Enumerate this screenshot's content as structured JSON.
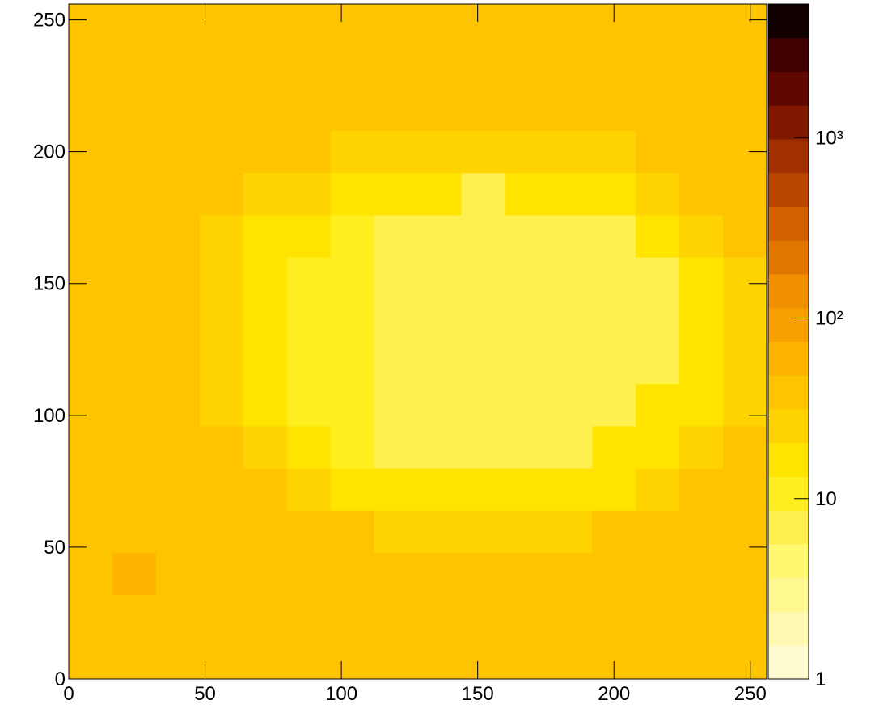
{
  "chart_data": {
    "type": "heatmap",
    "x_bins": [
      0,
      16,
      32,
      48,
      64,
      80,
      96,
      112,
      128,
      144,
      160,
      176,
      192,
      208,
      224,
      240,
      256
    ],
    "y_bins": [
      0,
      16,
      32,
      48,
      64,
      80,
      96,
      112,
      128,
      144,
      160,
      176,
      192,
      208,
      224,
      240,
      256
    ],
    "z": [
      [
        40,
        40,
        40,
        40,
        40,
        40,
        40,
        40,
        40,
        40,
        40,
        40,
        40,
        40,
        40,
        40
      ],
      [
        40,
        40,
        40,
        40,
        40,
        40,
        40,
        40,
        40,
        40,
        40,
        40,
        40,
        40,
        40,
        40
      ],
      [
        40,
        60,
        40,
        40,
        40,
        40,
        40,
        40,
        40,
        40,
        40,
        40,
        40,
        40,
        40,
        40
      ],
      [
        40,
        40,
        40,
        40,
        40,
        40,
        40,
        25,
        25,
        25,
        25,
        25,
        40,
        40,
        40,
        40
      ],
      [
        40,
        40,
        40,
        40,
        40,
        25,
        15,
        15,
        15,
        15,
        15,
        15,
        15,
        25,
        40,
        40
      ],
      [
        40,
        40,
        40,
        40,
        25,
        15,
        10,
        6,
        6,
        6,
        6,
        6,
        15,
        15,
        25,
        40
      ],
      [
        40,
        40,
        40,
        25,
        15,
        10,
        10,
        6,
        6,
        6,
        6,
        6,
        6,
        15,
        15,
        25
      ],
      [
        40,
        40,
        40,
        25,
        15,
        10,
        10,
        6,
        6,
        6,
        6,
        6,
        6,
        6,
        15,
        25
      ],
      [
        40,
        40,
        40,
        25,
        15,
        10,
        10,
        6,
        6,
        6,
        6,
        6,
        6,
        6,
        15,
        25
      ],
      [
        40,
        40,
        40,
        25,
        15,
        10,
        10,
        6,
        6,
        6,
        6,
        6,
        6,
        6,
        15,
        25
      ],
      [
        40,
        40,
        40,
        25,
        15,
        15,
        10,
        6,
        6,
        6,
        6,
        6,
        6,
        15,
        25,
        40
      ],
      [
        40,
        40,
        40,
        40,
        25,
        25,
        15,
        15,
        15,
        6,
        15,
        15,
        15,
        25,
        40,
        40
      ],
      [
        40,
        40,
        40,
        40,
        40,
        40,
        25,
        25,
        25,
        25,
        25,
        25,
        25,
        40,
        40,
        40
      ],
      [
        40,
        40,
        40,
        40,
        40,
        40,
        40,
        40,
        40,
        40,
        40,
        40,
        40,
        40,
        40,
        40
      ],
      [
        40,
        40,
        40,
        40,
        40,
        40,
        40,
        40,
        40,
        40,
        40,
        40,
        40,
        40,
        40,
        40
      ],
      [
        40,
        40,
        40,
        40,
        40,
        40,
        40,
        40,
        40,
        40,
        40,
        40,
        40,
        40,
        40,
        40
      ]
    ],
    "xlim": [
      0,
      256
    ],
    "ylim": [
      0,
      256
    ],
    "xticks": [
      0,
      50,
      100,
      150,
      200,
      250
    ],
    "yticks": [
      0,
      50,
      100,
      150,
      200,
      250
    ],
    "zlim": [
      1,
      5500
    ],
    "zlog": true,
    "zticks": [
      1,
      10,
      {
        "value": 100,
        "label": "10²"
      },
      {
        "value": 1000,
        "label": "10³"
      }
    ],
    "colors": [
      "#fffbd0",
      "#fff8b0",
      "#fff890",
      "#fff870",
      "#fff050",
      "#ffee20",
      "#ffe400",
      "#ffd400",
      "#ffc400",
      "#ffb400",
      "#f8a000",
      "#f09000",
      "#e07800",
      "#d06000",
      "#b84800",
      "#a03000",
      "#801800",
      "#600800",
      "#400000",
      "#100000"
    ]
  }
}
